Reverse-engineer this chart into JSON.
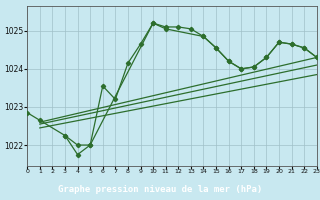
{
  "title": "Graphe pression niveau de la mer (hPa)",
  "bg_color": "#c8e8f0",
  "plot_bg": "#c8e8f0",
  "label_bg": "#2d6e2d",
  "label_fg": "#ffffff",
  "line_color": "#2d6e2d",
  "grid_color": "#a0c0c8",
  "xlim": [
    0,
    23
  ],
  "ylim": [
    1021.45,
    1025.65
  ],
  "yticks": [
    1022,
    1023,
    1024,
    1025
  ],
  "xticks": [
    0,
    1,
    2,
    3,
    4,
    5,
    6,
    7,
    8,
    9,
    10,
    11,
    12,
    13,
    14,
    15,
    16,
    17,
    18,
    19,
    20,
    21,
    22,
    23
  ],
  "curve1_x": [
    0,
    1,
    3,
    4,
    5,
    6,
    7,
    8,
    9,
    10,
    11,
    12,
    13,
    14,
    15,
    16,
    17,
    18,
    19,
    20,
    21,
    22,
    23
  ],
  "curve1_y": [
    1022.85,
    1022.65,
    1022.25,
    1022.0,
    1022.0,
    1023.55,
    1023.2,
    1024.15,
    1024.65,
    1025.2,
    1025.1,
    1025.1,
    1025.05,
    1024.85,
    1024.55,
    1024.2,
    1024.0,
    1024.05,
    1024.3,
    1024.7,
    1024.65,
    1024.55,
    1024.3
  ],
  "curve2_x": [
    3,
    4,
    5,
    10,
    11,
    14,
    15,
    16,
    17,
    18,
    19,
    20,
    21,
    22,
    23
  ],
  "curve2_y": [
    1022.25,
    1021.75,
    1022.0,
    1025.2,
    1025.05,
    1024.85,
    1024.55,
    1024.2,
    1024.0,
    1024.05,
    1024.3,
    1024.7,
    1024.65,
    1024.55,
    1024.3
  ],
  "trend1_x": [
    1,
    23
  ],
  "trend1_y": [
    1022.6,
    1024.3
  ],
  "trend2_x": [
    1,
    23
  ],
  "trend2_y": [
    1022.55,
    1024.1
  ],
  "trend3_x": [
    1,
    23
  ],
  "trend3_y": [
    1022.45,
    1023.85
  ]
}
